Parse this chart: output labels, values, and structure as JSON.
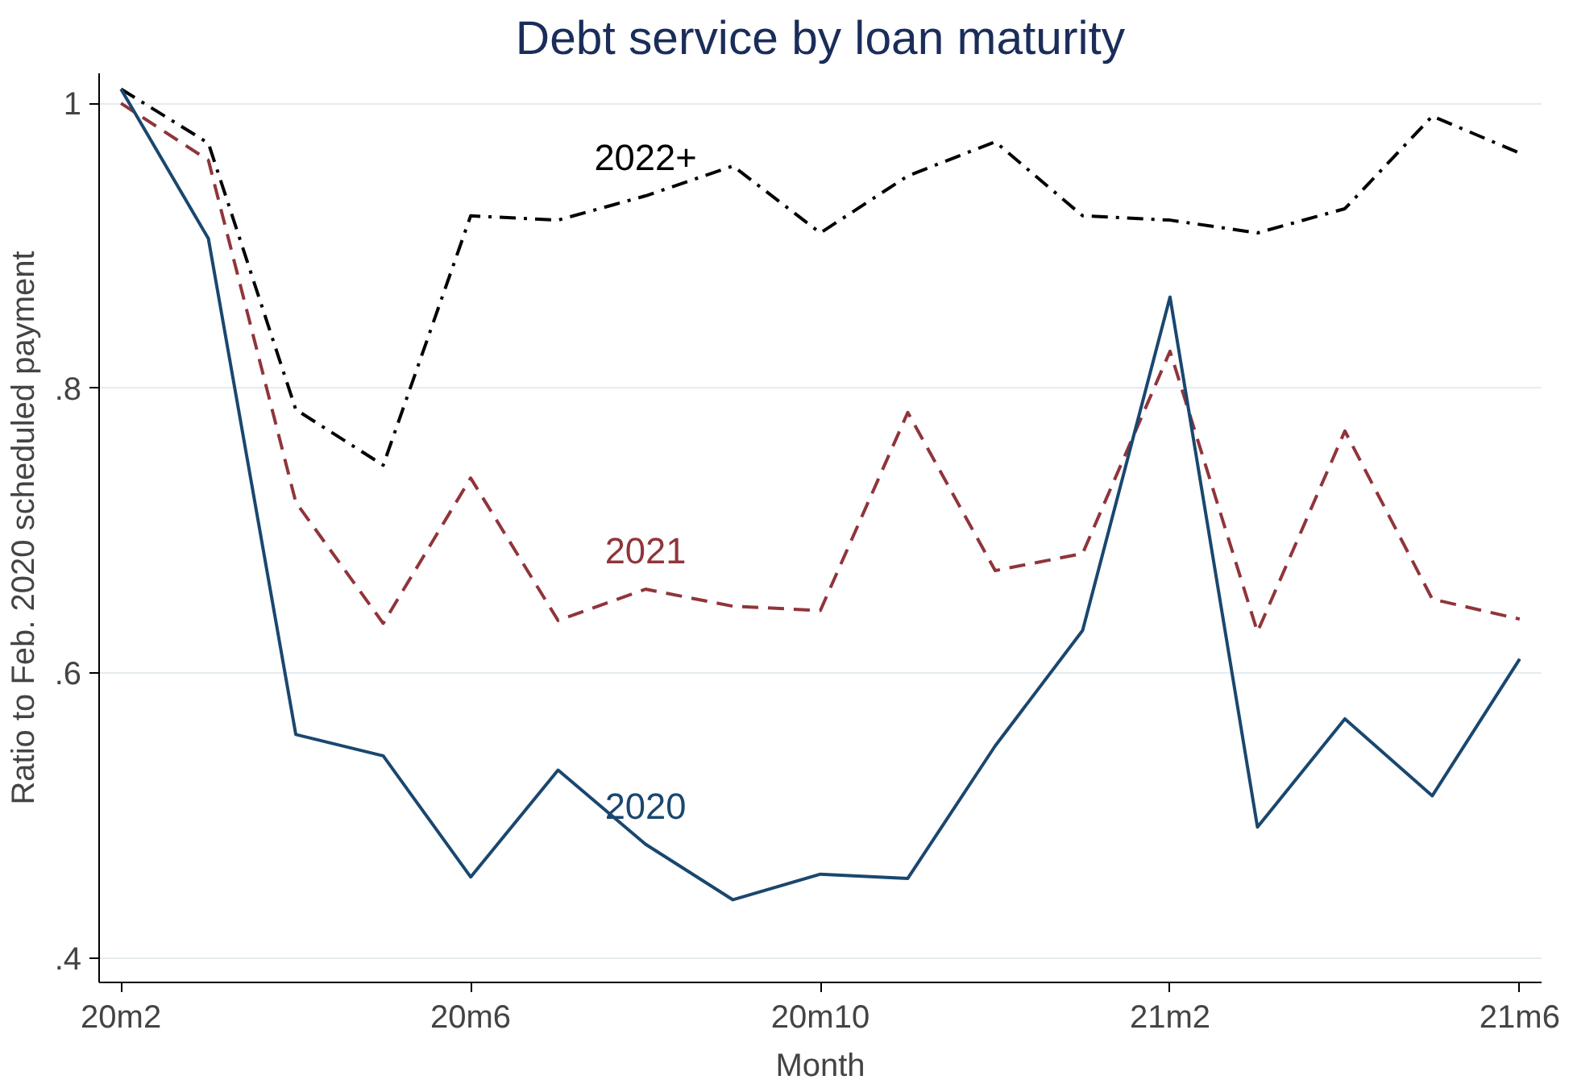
{
  "chart_data": {
    "type": "line",
    "title": "Debt service by loan maturity",
    "xlabel": "Month",
    "ylabel": "Ratio to Feb. 2020 scheduled payment",
    "categories": [
      "20m2",
      null,
      null,
      null,
      "20m6",
      null,
      null,
      null,
      "20m10",
      null,
      null,
      null,
      "21m2",
      null,
      null,
      null,
      "21m6"
    ],
    "series": [
      {
        "name": "2022+",
        "color": "#000000",
        "line_style": "dashdot",
        "values": [
          1.01,
          0.972,
          0.785,
          0.746,
          0.921,
          0.918,
          0.935,
          0.956,
          0.909,
          0.949,
          0.973,
          0.921,
          0.918,
          0.909,
          0.926,
          0.991,
          0.965
        ]
      },
      {
        "name": "2021",
        "color": "#90353b",
        "line_style": "dashed",
        "values": [
          1.0,
          0.96,
          0.72,
          0.635,
          0.737,
          0.637,
          0.659,
          0.647,
          0.644,
          0.783,
          0.672,
          0.684,
          0.826,
          0.629,
          0.77,
          0.652,
          0.638
        ]
      },
      {
        "name": "2020",
        "color": "#1a476f",
        "line_style": "solid",
        "values": [
          1.01,
          0.905,
          0.557,
          0.542,
          0.457,
          0.532,
          0.48,
          0.441,
          0.459,
          0.456,
          0.549,
          0.63,
          0.864,
          0.492,
          0.568,
          0.514,
          0.61
        ]
      }
    ],
    "ylim": [
      0.383,
      1.021
    ],
    "yticks": [
      {
        "value": 0.4,
        "label": ".4"
      },
      {
        "value": 0.6,
        "label": ".6"
      },
      {
        "value": 0.8,
        "label": ".8"
      },
      {
        "value": 1,
        "label": "1"
      }
    ],
    "grid": "y",
    "marker": "none"
  }
}
